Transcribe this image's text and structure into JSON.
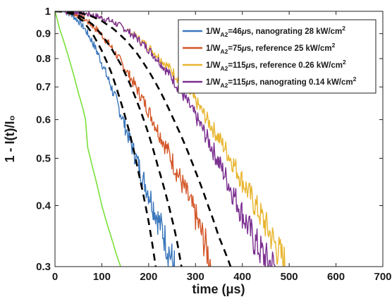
{
  "chart_data": {
    "type": "line",
    "xlabel": "time (μs)",
    "ylabel": "1 - I(t)/I₀",
    "xlim": [
      0,
      700
    ],
    "ylim": [
      0.3,
      1
    ],
    "yscale": "log",
    "xticks": [
      0,
      100,
      200,
      300,
      400,
      500,
      600,
      700
    ],
    "yticks": [
      0.3,
      0.4,
      0.5,
      0.6,
      0.7,
      0.8,
      0.9,
      1
    ],
    "ytick_labels": [
      "0.3",
      "0.4",
      "0.5",
      "0.6",
      "0.7",
      "0.8",
      "0.9",
      "1"
    ],
    "grid": false,
    "legend_position": "top-right",
    "series": [
      {
        "name": "1/W_A2=46μs, nanograting 28 kW/cm²",
        "legend_main": "1/W",
        "legend_sub": "A2",
        "legend_rest": "=46",
        "legend_mu": "μ",
        "legend_tail": "s, nanograting 28 kW/cm",
        "legend_sup": "2",
        "color": "#3b77bc",
        "x": [
          0,
          10,
          20,
          30,
          40,
          50,
          60,
          70,
          80,
          90,
          100,
          110,
          120,
          130,
          140,
          150,
          160,
          170,
          180,
          190,
          200,
          210,
          220,
          230,
          240,
          250,
          255
        ],
        "y": [
          1.0,
          1.0,
          0.997,
          0.99,
          0.975,
          0.955,
          0.93,
          0.9,
          0.865,
          0.825,
          0.785,
          0.74,
          0.7,
          0.66,
          0.62,
          0.58,
          0.545,
          0.51,
          0.48,
          0.45,
          0.425,
          0.4,
          0.375,
          0.355,
          0.33,
          0.31,
          0.3
        ]
      },
      {
        "name": "1/W_A2=75μs, reference 25 kW/cm²",
        "legend_main": "1/W",
        "legend_sub": "A2",
        "legend_rest": "=75",
        "legend_mu": "μ",
        "legend_tail": "s, reference 25 kW/cm",
        "legend_sup": "2",
        "color": "#d35627",
        "x": [
          0,
          20,
          40,
          60,
          80,
          100,
          120,
          140,
          160,
          180,
          200,
          220,
          240,
          260,
          280,
          300,
          320,
          335
        ],
        "y": [
          1.0,
          1.0,
          0.99,
          0.97,
          0.935,
          0.895,
          0.845,
          0.79,
          0.735,
          0.68,
          0.625,
          0.57,
          0.52,
          0.47,
          0.425,
          0.38,
          0.335,
          0.3
        ]
      },
      {
        "name": "1/W_A2=115μs, reference 0.26 kW/cm²",
        "legend_main": "1/W",
        "legend_sub": "A2",
        "legend_rest": "=115",
        "legend_mu": "μ",
        "legend_tail": "s, reference 0.26 kW/cm",
        "legend_sup": "2",
        "color": "#e8b52f",
        "x": [
          0,
          25,
          50,
          75,
          100,
          125,
          150,
          175,
          200,
          225,
          250,
          275,
          300,
          325,
          350,
          375,
          400,
          425,
          450,
          475,
          495
        ],
        "y": [
          1.0,
          1.0,
          0.995,
          0.985,
          0.97,
          0.95,
          0.92,
          0.885,
          0.845,
          0.8,
          0.755,
          0.705,
          0.655,
          0.6,
          0.55,
          0.5,
          0.45,
          0.405,
          0.365,
          0.325,
          0.3
        ]
      },
      {
        "name": "1/W_A2=115μs, nanograting 0.14 kW/cm²",
        "legend_main": "1/W",
        "legend_sub": "A2",
        "legend_rest": "=115",
        "legend_mu": "μ",
        "legend_tail": "s, nanograting 0.14 kW/cm",
        "legend_sup": "2",
        "color": "#7b2f90",
        "x": [
          0,
          25,
          50,
          75,
          100,
          125,
          150,
          175,
          200,
          225,
          250,
          275,
          300,
          325,
          350,
          375,
          400,
          425,
          450,
          470
        ],
        "y": [
          1.0,
          1.0,
          0.995,
          0.985,
          0.97,
          0.95,
          0.92,
          0.88,
          0.835,
          0.785,
          0.73,
          0.67,
          0.61,
          0.55,
          0.49,
          0.435,
          0.385,
          0.34,
          0.31,
          0.3
        ]
      }
    ],
    "extra_series": [
      {
        "color": "#79e03a",
        "x": [
          0,
          5,
          10,
          20,
          30,
          40,
          50,
          60,
          65,
          70,
          80,
          90,
          100,
          110,
          120,
          130,
          140
        ],
        "y": [
          1.0,
          0.96,
          0.92,
          0.86,
          0.8,
          0.74,
          0.68,
          0.63,
          0.6,
          0.525,
          0.48,
          0.44,
          0.4,
          0.37,
          0.345,
          0.32,
          0.3
        ]
      }
    ],
    "fit_lines": [
      {
        "color": "#000000",
        "dash": true,
        "x": [
          0,
          20,
          40,
          60,
          80,
          100,
          120,
          140,
          160,
          180,
          200,
          215
        ],
        "y": [
          1.0,
          0.998,
          0.985,
          0.955,
          0.9,
          0.83,
          0.75,
          0.655,
          0.56,
          0.46,
          0.37,
          0.3
        ]
      },
      {
        "color": "#000000",
        "dash": true,
        "x": [
          0,
          20,
          40,
          60,
          80,
          100,
          120,
          140,
          160,
          180,
          200,
          220,
          240,
          260,
          270
        ],
        "y": [
          1.0,
          1.0,
          0.99,
          0.97,
          0.94,
          0.895,
          0.84,
          0.78,
          0.71,
          0.635,
          0.56,
          0.48,
          0.41,
          0.34,
          0.3
        ]
      },
      {
        "color": "#000000",
        "dash": true,
        "x": [
          0,
          25,
          50,
          75,
          100,
          125,
          150,
          175,
          200,
          225,
          250,
          275,
          300,
          325,
          350,
          375
        ],
        "y": [
          1.0,
          1.0,
          0.995,
          0.98,
          0.955,
          0.92,
          0.875,
          0.82,
          0.755,
          0.685,
          0.61,
          0.54,
          0.47,
          0.405,
          0.345,
          0.3
        ]
      }
    ]
  }
}
